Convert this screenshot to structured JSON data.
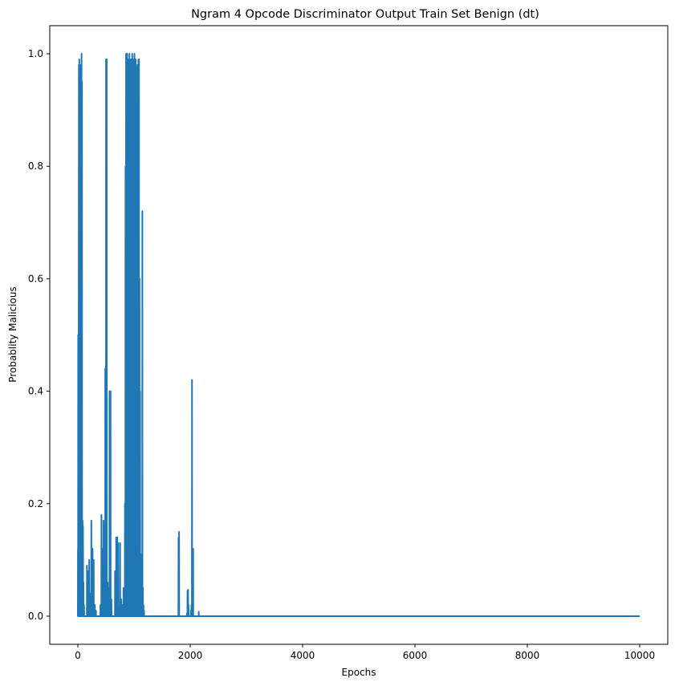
{
  "chart_data": {
    "type": "line",
    "title": "Ngram 4 Opcode Discriminator Output Train Set Benign (dt)",
    "xlabel": "Epochs",
    "ylabel": "Probablity Malicious",
    "xlim": [
      -500,
      10500
    ],
    "ylim": [
      -0.05,
      1.05
    ],
    "xticks": [
      0,
      2000,
      4000,
      6000,
      8000,
      10000
    ],
    "xtick_labels": [
      "0",
      "2000",
      "4000",
      "6000",
      "8000",
      "10000"
    ],
    "yticks": [
      0.0,
      0.2,
      0.4,
      0.6,
      0.8,
      1.0
    ],
    "ytick_labels": [
      "0.0",
      "0.2",
      "0.4",
      "0.6",
      "0.8",
      "1.0"
    ],
    "grid": false,
    "legend": "none",
    "series": [
      {
        "color": "#1f77b4",
        "points": [
          [
            0,
            0.0
          ],
          [
            2,
            0.12
          ],
          [
            4,
            0.0
          ],
          [
            6,
            0.5
          ],
          [
            8,
            0.0
          ],
          [
            10,
            0.49
          ],
          [
            12,
            0.0
          ],
          [
            18,
            0.98
          ],
          [
            20,
            0.0
          ],
          [
            26,
            0.99
          ],
          [
            28,
            0.0
          ],
          [
            34,
            0.97
          ],
          [
            36,
            0.0
          ],
          [
            42,
            0.95
          ],
          [
            44,
            0.0
          ],
          [
            50,
            0.98
          ],
          [
            52,
            0.0
          ],
          [
            58,
            0.93
          ],
          [
            60,
            0.0
          ],
          [
            66,
            1.0
          ],
          [
            68,
            0.0
          ],
          [
            74,
            0.95
          ],
          [
            76,
            0.0
          ],
          [
            84,
            0.17
          ],
          [
            86,
            0.0
          ],
          [
            92,
            0.16
          ],
          [
            94,
            0.0
          ],
          [
            100,
            0.06
          ],
          [
            102,
            0.0
          ],
          [
            110,
            0.02
          ],
          [
            112,
            0.0
          ],
          [
            160,
            0.0
          ],
          [
            162,
            0.09
          ],
          [
            164,
            0.0
          ],
          [
            180,
            0.0
          ],
          [
            182,
            0.08
          ],
          [
            184,
            0.0
          ],
          [
            200,
            0.0
          ],
          [
            202,
            0.1
          ],
          [
            204,
            0.0
          ],
          [
            220,
            0.0
          ],
          [
            222,
            0.04
          ],
          [
            224,
            0.0
          ],
          [
            238,
            0.0
          ],
          [
            240,
            0.17
          ],
          [
            242,
            0.0
          ],
          [
            260,
            0.0
          ],
          [
            262,
            0.12
          ],
          [
            264,
            0.0
          ],
          [
            280,
            0.0
          ],
          [
            282,
            0.1
          ],
          [
            284,
            0.0
          ],
          [
            300,
            0.0
          ],
          [
            302,
            0.02
          ],
          [
            304,
            0.0
          ],
          [
            320,
            0.0
          ],
          [
            322,
            0.01
          ],
          [
            324,
            0.0
          ],
          [
            400,
            0.0
          ],
          [
            402,
            0.02
          ],
          [
            404,
            0.0
          ],
          [
            418,
            0.0
          ],
          [
            420,
            0.18
          ],
          [
            422,
            0.0
          ],
          [
            436,
            0.0
          ],
          [
            438,
            0.12
          ],
          [
            440,
            0.0
          ],
          [
            454,
            0.0
          ],
          [
            456,
            0.17
          ],
          [
            458,
            0.0
          ],
          [
            470,
            0.0
          ],
          [
            472,
            0.16
          ],
          [
            474,
            0.0
          ],
          [
            486,
            0.0
          ],
          [
            488,
            0.44
          ],
          [
            490,
            0.0
          ],
          [
            500,
            0.0
          ],
          [
            502,
            0.99
          ],
          [
            504,
            0.0
          ],
          [
            512,
            0.0
          ],
          [
            514,
            0.99
          ],
          [
            516,
            0.0
          ],
          [
            528,
            0.0
          ],
          [
            530,
            0.06
          ],
          [
            532,
            0.0
          ],
          [
            546,
            0.0
          ],
          [
            548,
            0.05
          ],
          [
            550,
            0.0
          ],
          [
            562,
            0.0
          ],
          [
            564,
            0.4
          ],
          [
            566,
            0.0
          ],
          [
            580,
            0.0
          ],
          [
            582,
            0.4
          ],
          [
            584,
            0.0
          ],
          [
            596,
            0.0
          ],
          [
            598,
            0.03
          ],
          [
            600,
            0.0
          ],
          [
            660,
            0.0
          ],
          [
            662,
            0.08
          ],
          [
            664,
            0.0
          ],
          [
            680,
            0.0
          ],
          [
            682,
            0.14
          ],
          [
            684,
            0.0
          ],
          [
            700,
            0.0
          ],
          [
            702,
            0.14
          ],
          [
            704,
            0.0
          ],
          [
            716,
            0.0
          ],
          [
            718,
            0.13
          ],
          [
            720,
            0.0
          ],
          [
            734,
            0.0
          ],
          [
            736,
            0.02
          ],
          [
            738,
            0.0
          ],
          [
            750,
            0.0
          ],
          [
            752,
            0.13
          ],
          [
            754,
            0.0
          ],
          [
            770,
            0.0
          ],
          [
            772,
            0.03
          ],
          [
            774,
            0.0
          ],
          [
            790,
            0.0
          ],
          [
            792,
            0.02
          ],
          [
            794,
            0.0
          ],
          [
            810,
            0.0
          ],
          [
            812,
            0.05
          ],
          [
            814,
            0.0
          ],
          [
            822,
            0.0
          ],
          [
            824,
            0.03
          ],
          [
            826,
            0.0
          ],
          [
            836,
            0.0
          ],
          [
            838,
            0.2
          ],
          [
            840,
            0.0
          ],
          [
            846,
            0.0
          ],
          [
            848,
            0.8
          ],
          [
            850,
            0.0
          ],
          [
            856,
            0.0
          ],
          [
            858,
            1.0
          ],
          [
            860,
            0.0
          ],
          [
            866,
            0.0
          ],
          [
            868,
            0.91
          ],
          [
            870,
            0.0
          ],
          [
            876,
            0.0
          ],
          [
            878,
            1.0
          ],
          [
            880,
            0.0
          ],
          [
            886,
            0.0
          ],
          [
            888,
            0.7
          ],
          [
            890,
            0.0
          ],
          [
            896,
            0.0
          ],
          [
            898,
            0.99
          ],
          [
            900,
            0.0
          ],
          [
            906,
            0.0
          ],
          [
            908,
            0.85
          ],
          [
            910,
            0.0
          ],
          [
            916,
            0.0
          ],
          [
            918,
            1.0
          ],
          [
            920,
            0.0
          ],
          [
            926,
            0.0
          ],
          [
            928,
            0.99
          ],
          [
            930,
            0.0
          ],
          [
            936,
            0.0
          ],
          [
            938,
            0.6
          ],
          [
            940,
            0.0
          ],
          [
            946,
            0.0
          ],
          [
            948,
            0.99
          ],
          [
            950,
            0.0
          ],
          [
            956,
            0.0
          ],
          [
            958,
            0.75
          ],
          [
            960,
            0.0
          ],
          [
            966,
            0.0
          ],
          [
            968,
            1.0
          ],
          [
            970,
            0.0
          ],
          [
            976,
            0.0
          ],
          [
            978,
            0.99
          ],
          [
            980,
            0.0
          ],
          [
            986,
            0.0
          ],
          [
            988,
            0.8
          ],
          [
            990,
            0.0
          ],
          [
            996,
            0.0
          ],
          [
            998,
            0.99
          ],
          [
            1000,
            0.0
          ],
          [
            1006,
            0.0
          ],
          [
            1008,
            1.0
          ],
          [
            1010,
            0.0
          ],
          [
            1016,
            0.0
          ],
          [
            1018,
            0.7
          ],
          [
            1020,
            0.0
          ],
          [
            1026,
            0.0
          ],
          [
            1028,
            0.99
          ],
          [
            1030,
            0.0
          ],
          [
            1036,
            0.0
          ],
          [
            1038,
            0.91
          ],
          [
            1040,
            0.0
          ],
          [
            1046,
            0.0
          ],
          [
            1048,
            0.75
          ],
          [
            1050,
            0.0
          ],
          [
            1056,
            0.0
          ],
          [
            1058,
            0.98
          ],
          [
            1060,
            0.0
          ],
          [
            1066,
            0.0
          ],
          [
            1068,
            0.5
          ],
          [
            1070,
            0.0
          ],
          [
            1076,
            0.0
          ],
          [
            1078,
            0.99
          ],
          [
            1080,
            0.0
          ],
          [
            1086,
            0.0
          ],
          [
            1088,
            0.99
          ],
          [
            1090,
            0.0
          ],
          [
            1096,
            0.0
          ],
          [
            1098,
            0.6
          ],
          [
            1100,
            0.0
          ],
          [
            1106,
            0.0
          ],
          [
            1108,
            0.4
          ],
          [
            1110,
            0.0
          ],
          [
            1116,
            0.0
          ],
          [
            1118,
            0.1
          ],
          [
            1120,
            0.0
          ],
          [
            1126,
            0.0
          ],
          [
            1128,
            0.11
          ],
          [
            1130,
            0.0
          ],
          [
            1136,
            0.0
          ],
          [
            1138,
            0.11
          ],
          [
            1140,
            0.0
          ],
          [
            1146,
            0.0
          ],
          [
            1148,
            0.72
          ],
          [
            1150,
            0.0
          ],
          [
            1156,
            0.0
          ],
          [
            1158,
            0.05
          ],
          [
            1160,
            0.0
          ],
          [
            1166,
            0.0
          ],
          [
            1168,
            0.02
          ],
          [
            1170,
            0.0
          ],
          [
            1176,
            0.0
          ],
          [
            1178,
            0.01
          ],
          [
            1180,
            0.0
          ],
          [
            1790,
            0.0
          ],
          [
            1792,
            0.14
          ],
          [
            1794,
            0.0
          ],
          [
            1800,
            0.0
          ],
          [
            1802,
            0.15
          ],
          [
            1804,
            0.0
          ],
          [
            1940,
            0.0
          ],
          [
            1942,
            0.005
          ],
          [
            1944,
            0.0
          ],
          [
            1950,
            0.0
          ],
          [
            1952,
            0.045
          ],
          [
            1954,
            0.0
          ],
          [
            1960,
            0.0
          ],
          [
            1962,
            0.047
          ],
          [
            1964,
            0.0
          ],
          [
            1968,
            0.0
          ],
          [
            1970,
            0.02
          ],
          [
            1972,
            0.0
          ],
          [
            2010,
            0.0
          ],
          [
            2012,
            0.01
          ],
          [
            2014,
            0.0
          ],
          [
            2020,
            0.0
          ],
          [
            2022,
            0.02
          ],
          [
            2024,
            0.0
          ],
          [
            2030,
            0.0
          ],
          [
            2032,
            0.42
          ],
          [
            2034,
            0.0
          ],
          [
            2040,
            0.0
          ],
          [
            2042,
            0.12
          ],
          [
            2044,
            0.0
          ],
          [
            2050,
            0.0
          ],
          [
            2052,
            0.12
          ],
          [
            2054,
            0.0
          ],
          [
            2150,
            0.0
          ],
          [
            2152,
            0.008
          ],
          [
            2154,
            0.0
          ],
          [
            10000,
            0.0
          ]
        ]
      }
    ]
  }
}
